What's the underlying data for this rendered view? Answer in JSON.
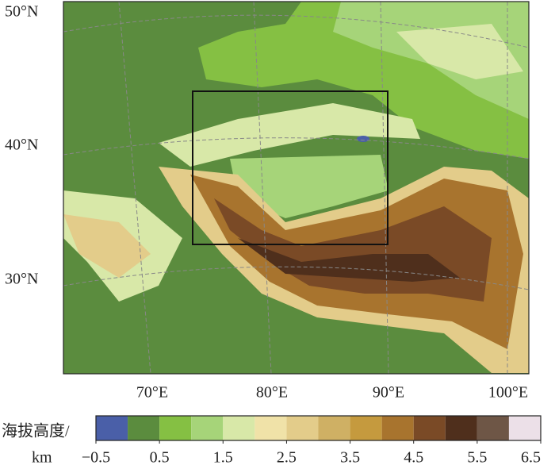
{
  "map": {
    "lat_labels": [
      "50°N",
      "40°N",
      "30°N"
    ],
    "lon_labels": [
      "70°E",
      "80°E",
      "90°E",
      "100°E"
    ]
  },
  "colorbar": {
    "label": "海拔高度/",
    "unit": "km",
    "levels": [
      -0.5,
      0,
      0.5,
      1,
      1.5,
      2,
      2.5,
      3,
      3.5,
      4,
      4.5,
      5,
      5.5,
      6,
      6.5
    ],
    "colors": [
      "#4a5fa8",
      "#5b8c3e",
      "#85c043",
      "#a6d479",
      "#d8e8a8",
      "#f0e2a8",
      "#e3cc8a",
      "#cfb064",
      "#c59a3e",
      "#a8742e",
      "#7a4a26",
      "#4f2f1c",
      "#6e5646",
      "#ece0e8"
    ],
    "ticks": [
      {
        "value": -0.5,
        "label": "−0.5"
      },
      0.5,
      1.5,
      2.5,
      3.5,
      4.5,
      5.5,
      6.5
    ]
  }
}
